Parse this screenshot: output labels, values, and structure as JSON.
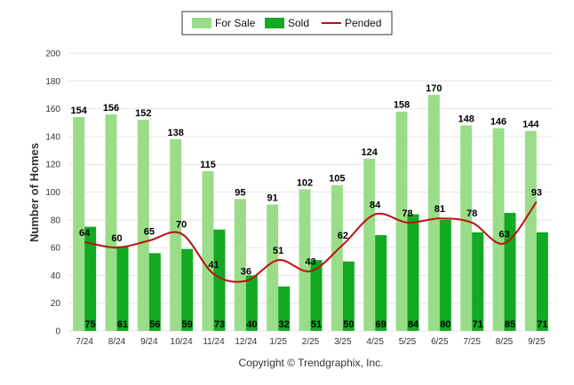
{
  "chart_data": {
    "type": "bar",
    "title": "",
    "xlabel": "",
    "ylabel": "Number of Homes",
    "ylim": [
      0,
      200
    ],
    "yticks": [
      0,
      20,
      40,
      60,
      80,
      100,
      120,
      140,
      160,
      180,
      200
    ],
    "categories": [
      "7/24",
      "8/24",
      "9/24",
      "10/24",
      "11/24",
      "12/24",
      "1/25",
      "2/25",
      "3/25",
      "4/25",
      "5/25",
      "6/25",
      "7/25",
      "8/25",
      "9/25"
    ],
    "series": [
      {
        "name": "For Sale",
        "kind": "bar",
        "color": "#99dd88",
        "values": [
          154,
          156,
          152,
          138,
          115,
          95,
          91,
          102,
          105,
          124,
          158,
          170,
          148,
          146,
          144
        ]
      },
      {
        "name": "Sold",
        "kind": "bar",
        "color": "#11aa22",
        "values": [
          75,
          61,
          56,
          59,
          73,
          40,
          32,
          51,
          50,
          69,
          84,
          80,
          71,
          85,
          71
        ]
      },
      {
        "name": "Pended",
        "kind": "line",
        "color": "#bb1111",
        "values": [
          64,
          60,
          65,
          70,
          41,
          36,
          51,
          43,
          62,
          84,
          78,
          81,
          78,
          63,
          93
        ]
      }
    ],
    "legend_position": "top-center",
    "grid": true
  },
  "footer": {
    "copyright": "Copyright © Trendgraphix, Inc."
  }
}
